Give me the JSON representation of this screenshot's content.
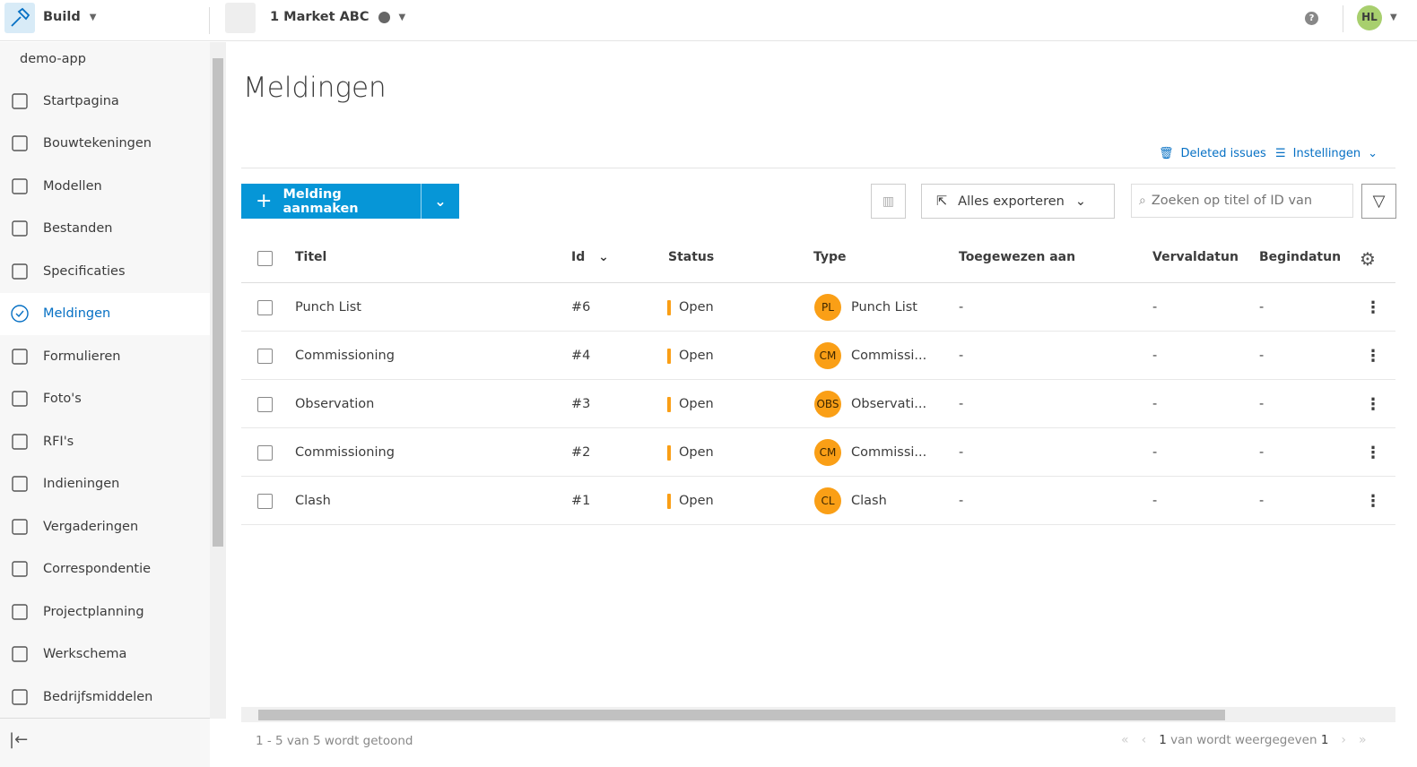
{
  "topbar": {
    "app": "Build",
    "project": "1 Market ABC",
    "avatar": "HL"
  },
  "sidebar": {
    "account": "demo-app",
    "items": [
      {
        "label": "Startpagina",
        "icon": "home-icon"
      },
      {
        "label": "Bouwtekeningen",
        "icon": "sheets-icon"
      },
      {
        "label": "Modellen",
        "icon": "cube-icon"
      },
      {
        "label": "Bestanden",
        "icon": "file-icon"
      },
      {
        "label": "Specificaties",
        "icon": "specs-icon"
      },
      {
        "label": "Meldingen",
        "icon": "check-circle-icon",
        "active": true
      },
      {
        "label": "Formulieren",
        "icon": "clipboard-icon"
      },
      {
        "label": "Foto's",
        "icon": "photo-icon"
      },
      {
        "label": "RFI's",
        "icon": "rfi-icon"
      },
      {
        "label": "Indieningen",
        "icon": "stamp-icon"
      },
      {
        "label": "Vergaderingen",
        "icon": "calendar-icon"
      },
      {
        "label": "Correspondentie",
        "icon": "mail-icon"
      },
      {
        "label": "Projectplanning",
        "icon": "schedule-icon"
      },
      {
        "label": "Werkschema",
        "icon": "workflow-icon"
      },
      {
        "label": "Bedrijfsmiddelen",
        "icon": "assets-icon"
      }
    ]
  },
  "main": {
    "title": "Meldingen",
    "deleted_issues": "Deleted issues",
    "settings": "Instellingen",
    "create_button": "Melding aanmaken",
    "export_button": "Alles exporteren",
    "search_placeholder": "Zoeken op titel of ID van",
    "columns": [
      "Titel",
      "Id",
      "Status",
      "Type",
      "Toegewezen aan",
      "Vervaldatun",
      "Begindatun"
    ],
    "rows": [
      {
        "title": "Punch List",
        "id": "#6",
        "status": "Open",
        "badge": "PL",
        "type": "Punch List",
        "assigned": "-",
        "due": "-",
        "start": "-"
      },
      {
        "title": "Commissioning",
        "id": "#4",
        "status": "Open",
        "badge": "CM",
        "type": "Commissi...",
        "assigned": "-",
        "due": "-",
        "start": "-"
      },
      {
        "title": "Observation",
        "id": "#3",
        "status": "Open",
        "badge": "OBS",
        "type": "Observati...",
        "assigned": "-",
        "due": "-",
        "start": "-"
      },
      {
        "title": "Commissioning",
        "id": "#2",
        "status": "Open",
        "badge": "CM",
        "type": "Commissi...",
        "assigned": "-",
        "due": "-",
        "start": "-"
      },
      {
        "title": "Clash",
        "id": "#1",
        "status": "Open",
        "badge": "CL",
        "type": "Clash",
        "assigned": "-",
        "due": "-",
        "start": "-"
      }
    ],
    "footer_count": "1 - 5 van 5 wordt getoond",
    "pager_current": "1",
    "pager_text": "van wordt weergegeven",
    "pager_total": "1"
  },
  "colors": {
    "accent": "#0696d7",
    "status_open": "#fa9f16",
    "avatar": "#a8cf6e"
  }
}
